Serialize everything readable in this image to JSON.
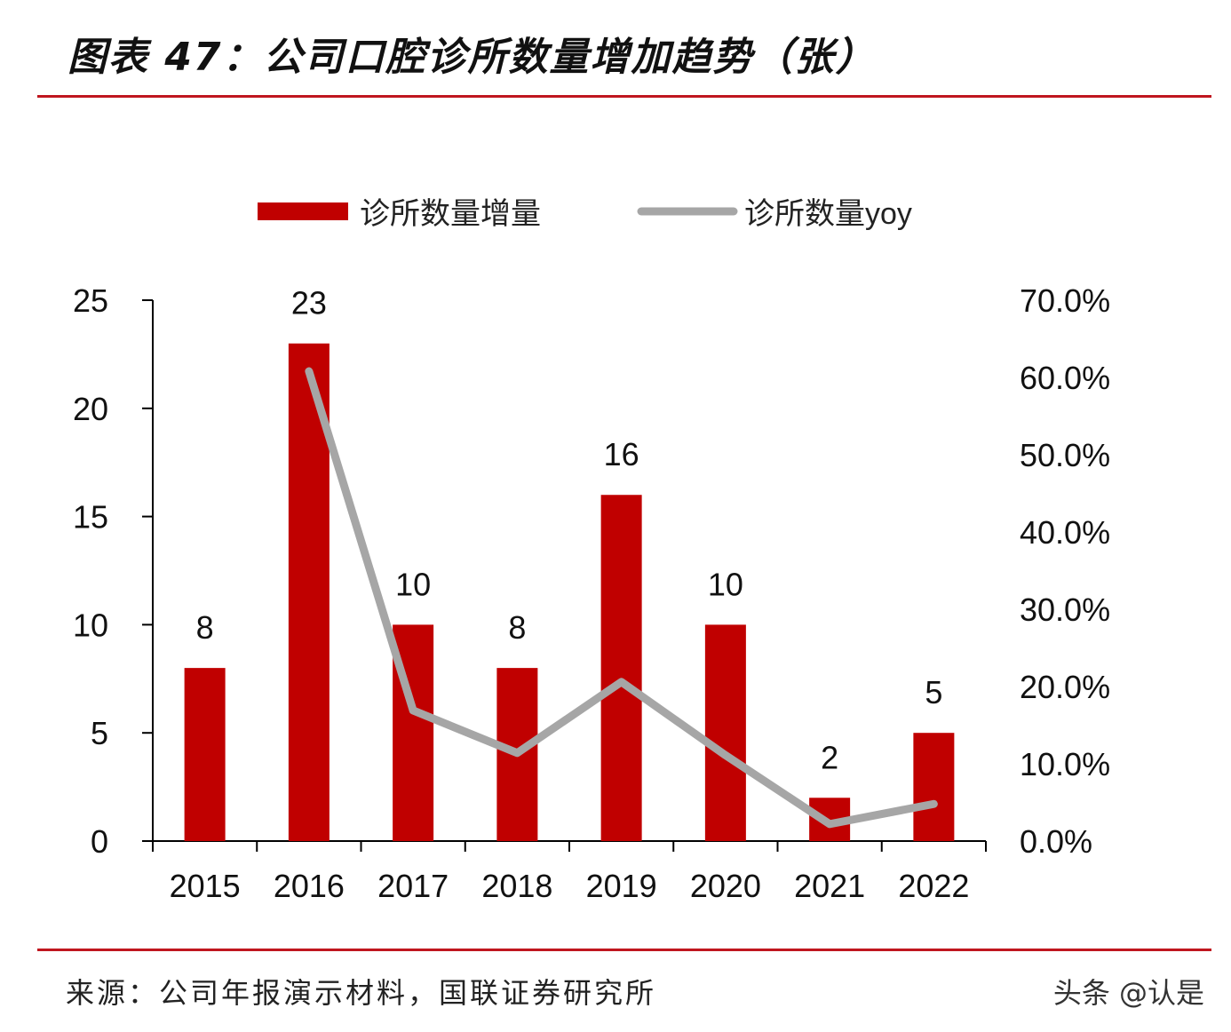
{
  "header": {
    "title": "图表 47：公司口腔诊所数量增加趋势（张）"
  },
  "footer": {
    "source": "来源：公司年报演示材料，国联证券研究所",
    "watermark": "头条 @认是"
  },
  "colors": {
    "bar": "#c00000",
    "line": "#a6a6a6",
    "rule": "#c0161f"
  },
  "chart_data": {
    "type": "bar",
    "title": "公司口腔诊所数量增加趋势（张）",
    "categories": [
      "2015",
      "2016",
      "2017",
      "2018",
      "2019",
      "2020",
      "2021",
      "2022"
    ],
    "series": [
      {
        "name": "诊所数量增量",
        "type": "bar",
        "axis": "left",
        "values": [
          8,
          23,
          10,
          8,
          16,
          10,
          2,
          5
        ]
      },
      {
        "name": "诊所数量yoy",
        "type": "line",
        "axis": "right",
        "values": [
          null,
          60.8,
          16.9,
          11.4,
          20.6,
          11.1,
          2.2,
          4.8
        ]
      }
    ],
    "left_axis": {
      "ylim": [
        0,
        25
      ],
      "ticks": [
        "0",
        "5",
        "10",
        "15",
        "20",
        "25"
      ]
    },
    "right_axis": {
      "ylim": [
        0,
        70
      ],
      "ticks": [
        "0.0%",
        "10.0%",
        "20.0%",
        "30.0%",
        "40.0%",
        "50.0%",
        "60.0%",
        "70.0%"
      ]
    },
    "legend": {
      "placement": "top",
      "items": [
        "诊所数量增量",
        "诊所数量yoy"
      ]
    },
    "grid": false
  }
}
